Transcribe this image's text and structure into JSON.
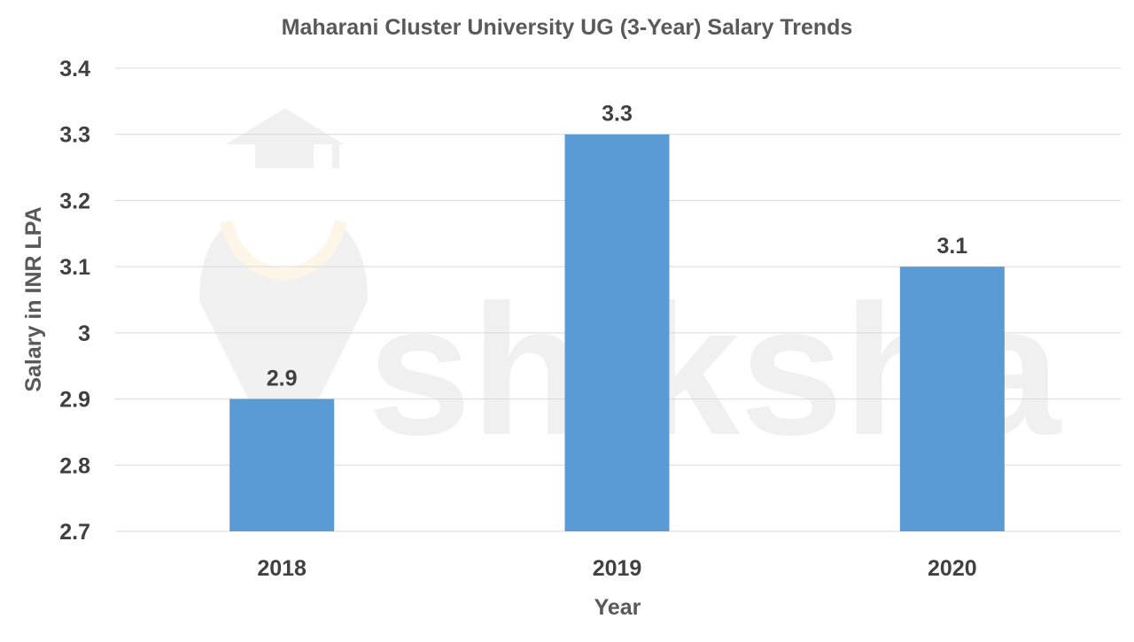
{
  "watermark": "shiksha",
  "chart_data": {
    "type": "bar",
    "title": "Maharani Cluster University UG (3-Year) Salary Trends",
    "xlabel": "Year",
    "ylabel": "Salary in INR LPA",
    "categories": [
      "2018",
      "2019",
      "2020"
    ],
    "values": [
      2.9,
      3.3,
      3.1
    ],
    "value_labels": [
      "2.9",
      "3.3",
      "3.1"
    ],
    "ylim": [
      2.7,
      3.4
    ],
    "yticks": [
      "2.7",
      "2.8",
      "2.9",
      "3",
      "3.1",
      "3.2",
      "3.3",
      "3.4"
    ],
    "grid": true,
    "legend": "none",
    "bar_color": "#5B9BD5"
  }
}
